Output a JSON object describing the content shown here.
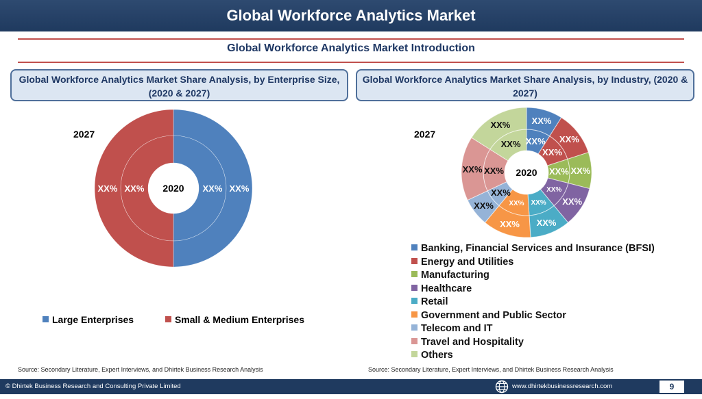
{
  "header": {
    "title": "Global Workforce Analytics Market"
  },
  "section": {
    "subtitle": "Global Workforce Analytics Market  Introduction"
  },
  "left_panel": {
    "heading": "Global Workforce Analytics Market  Share Analysis, by Enterprise Size, (2020 & 2027)",
    "outer_year": "2027",
    "center_year": "2020",
    "source": "Source: Secondary Literature, Expert Interviews, and Dhirtek Business Research Analysis"
  },
  "right_panel": {
    "heading": "Global Workforce Analytics Market  Share Analysis, by Industry, (2020 & 2027)",
    "outer_year": "2027",
    "center_year": "2020",
    "source": "Source: Secondary Literature, Expert Interviews, and Dhirtek Business Research Analysis"
  },
  "chart_data": [
    {
      "type": "pie",
      "variant": "double-donut",
      "title": "Global Workforce Analytics Market  Share Analysis, by Enterprise Size, (2020 & 2027)",
      "rings": [
        "2020",
        "2027"
      ],
      "categories": [
        "Large Enterprises",
        "Small & Medium Enterprises"
      ],
      "colors": [
        "#4f81bd",
        "#c0504d"
      ],
      "series": [
        {
          "ring": "2020",
          "values": [
            50,
            50
          ],
          "labels": [
            "XX%",
            "XX%"
          ]
        },
        {
          "ring": "2027",
          "values": [
            50,
            50
          ],
          "labels": [
            "XX%",
            "XX%"
          ]
        }
      ],
      "legend": "bottom"
    },
    {
      "type": "pie",
      "variant": "double-donut",
      "title": "Global Workforce Analytics Market  Share Analysis, by Industry, (2020 & 2027)",
      "rings": [
        "2020",
        "2027"
      ],
      "categories": [
        "Banking, Financial Services and Insurance (BFSI)",
        "Energy and Utilities",
        "Manufacturing",
        "Healthcare",
        "Retail",
        "Government and Public Sector",
        "Telecom and IT",
        "Travel and Hospitality",
        "Others"
      ],
      "colors": [
        "#4f81bd",
        "#c0504d",
        "#9bbb59",
        "#8064a2",
        "#4bacc6",
        "#f79646",
        "#95b3d7",
        "#da9694",
        "#c3d69b"
      ],
      "series": [
        {
          "ring": "2020",
          "values": [
            9,
            11,
            9,
            10,
            10,
            12,
            7,
            16,
            16
          ],
          "labels": [
            "XX%",
            "XX%",
            "XX%",
            "XX%",
            "XX%",
            "XX%",
            "XX%",
            "XX%",
            "XX%"
          ]
        },
        {
          "ring": "2027",
          "values": [
            9,
            11,
            9,
            10,
            10,
            12,
            7,
            16,
            16
          ],
          "labels": [
            "XX%",
            "XX%",
            "XX%",
            "XX%",
            "XX%",
            "XX%",
            "XX%",
            "XX%",
            "XX%"
          ]
        }
      ],
      "legend": "bottom"
    }
  ],
  "footer": {
    "copyright": "© Dhirtek Business Research and Consulting Private Limited",
    "website": "www.dhirtekbusinessresearch.com",
    "page_number": "9"
  }
}
